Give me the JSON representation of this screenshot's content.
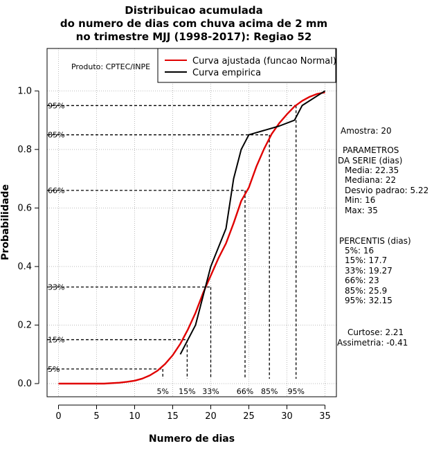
{
  "colors": {
    "fitted": "#e00000",
    "empirical": "#000000",
    "grid": "#bbbbbb",
    "ref": "#000000"
  },
  "chart_data": {
    "type": "line",
    "title": [
      "Distribuicao acumulada",
      "do numero de dias com chuva acima de 2 mm",
      "no trimestre MJJ (1998-2017): Regiao 52"
    ],
    "xlabel": "Numero de dias",
    "ylabel": "Probabilidade",
    "xlim": [
      -1.5,
      36.5
    ],
    "ylim": [
      -0.045,
      1.145
    ],
    "x_ticks": [
      "0",
      "5",
      "10",
      "15",
      "20",
      "25",
      "30",
      "35"
    ],
    "y_ticks": [
      "0.0",
      "0.2",
      "0.4",
      "0.6",
      "0.8",
      "1.0"
    ],
    "grid": true,
    "product_label": "Produto: CPTEC/INPE",
    "legend": {
      "position": "top-right",
      "entries": [
        {
          "label": "Curva ajustada (funcao Normal)",
          "color": "#e00000"
        },
        {
          "label": "Curva empirica",
          "color": "#000000"
        }
      ]
    },
    "series": [
      {
        "name": "Curva ajustada (funcao Normal)",
        "type": "fitted",
        "x": [
          0,
          2,
          4,
          6,
          8,
          9,
          10,
          11,
          12,
          13,
          14,
          15,
          16,
          17,
          18,
          19,
          20,
          21,
          22,
          23,
          24,
          25,
          26,
          27,
          28,
          29,
          30,
          31,
          32,
          33,
          34,
          35
        ],
        "y": [
          0.0,
          0.0,
          0.0,
          0.0,
          0.003,
          0.006,
          0.01,
          0.017,
          0.028,
          0.044,
          0.067,
          0.097,
          0.136,
          0.185,
          0.242,
          0.31,
          0.369,
          0.428,
          0.479,
          0.548,
          0.624,
          0.67,
          0.742,
          0.802,
          0.853,
          0.89,
          0.92,
          0.947,
          0.966,
          0.98,
          0.99,
          0.995
        ]
      },
      {
        "name": "Curva empirica",
        "type": "empirical",
        "x": [
          16,
          17,
          18,
          20,
          22,
          23,
          24,
          25,
          29,
          31,
          32,
          35
        ],
        "y": [
          0.1,
          0.15,
          0.2,
          0.4,
          0.53,
          0.7,
          0.8,
          0.85,
          0.88,
          0.9,
          0.95,
          1.0
        ]
      }
    ],
    "percentile_refs": [
      {
        "label": "5%",
        "p": 0.05,
        "x": 13.7
      },
      {
        "label": "15%",
        "p": 0.15,
        "x": 16.9
      },
      {
        "label": "33%",
        "p": 0.33,
        "x": 20.0
      },
      {
        "label": "66%",
        "p": 0.66,
        "x": 24.5
      },
      {
        "label": "85%",
        "p": 0.85,
        "x": 27.7
      },
      {
        "label": "95%",
        "p": 0.95,
        "x": 31.2
      }
    ],
    "stats": {
      "amostra": "Amostra: 20",
      "parametros_title": [
        "PARAMETROS",
        "DA SERIE (dias)"
      ],
      "parametros": [
        "Media: 22.35",
        "Mediana: 22",
        "Desvio padrao: 5.22",
        "Min: 16",
        "Max: 35"
      ],
      "percentis_title": "PERCENTIS (dias)",
      "percentis": [
        "5%: 16",
        "15%: 17.7",
        "33%: 19.27",
        "66%: 23",
        "85%: 25.9",
        "95%: 32.15"
      ],
      "curtose": "Curtose: 2.21",
      "assimetria": "Assimetria: -0.41"
    }
  }
}
